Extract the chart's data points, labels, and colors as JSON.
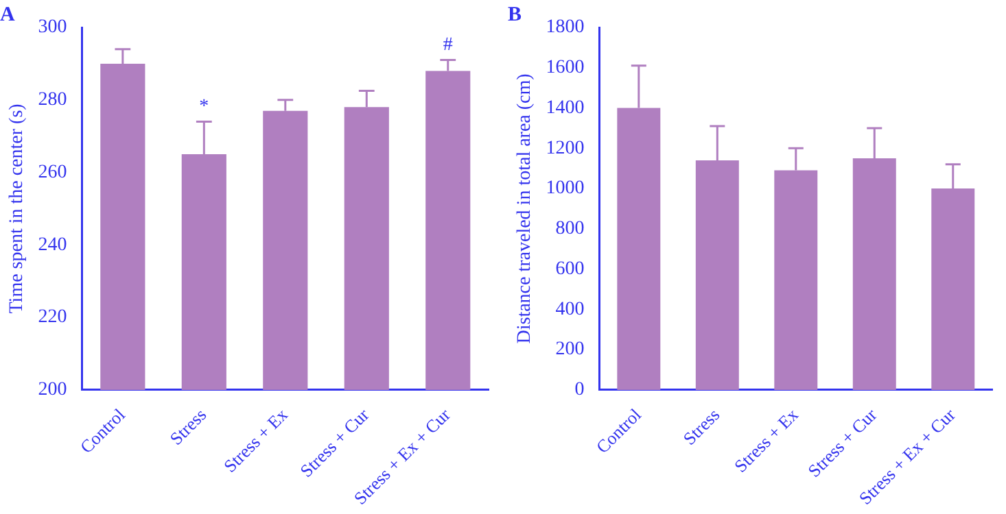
{
  "chart_data": [
    {
      "type": "bar",
      "title": "A",
      "ylabel": "Time spent in the center (s)",
      "categories": [
        "Control",
        "Stress",
        "Stress + Ex",
        "Stress + Cur",
        "Stress + Ex + Cur"
      ],
      "values": [
        290,
        265,
        277,
        278,
        288
      ],
      "errors": [
        [
          290,
          294
        ],
        [
          265,
          274
        ],
        [
          277,
          280
        ],
        [
          278,
          282.5
        ],
        [
          288,
          291
        ]
      ],
      "color": "#b07fc0",
      "ylim": [
        200,
        300
      ],
      "yticks": [
        200,
        220,
        240,
        260,
        280,
        300
      ],
      "annotations": [
        {
          "text": "*",
          "x": "Stress",
          "y": 265
        },
        {
          "text": "#",
          "x": "Stress + Ex + Cur",
          "y": 288
        }
      ]
    },
    {
      "type": "bar",
      "title": "B",
      "ylabel": "Distance traveled in total area (cm)",
      "categories": [
        "Control",
        "Stress",
        "Stress + Ex",
        "Stress + Cur",
        "Stress + Ex + Cur"
      ],
      "values": [
        1400,
        1140,
        1090,
        1150,
        1000
      ],
      "errors": [
        [
          1400,
          1610
        ],
        [
          1140,
          1310
        ],
        [
          1090,
          1200
        ],
        [
          1150,
          1300
        ],
        [
          1000,
          1120
        ]
      ],
      "color": "#b07fc0",
      "ylim": [
        0,
        1800
      ],
      "yticks": [
        0,
        200,
        400,
        600,
        800,
        1000,
        1200,
        1400,
        1600,
        1800
      ]
    }
  ]
}
